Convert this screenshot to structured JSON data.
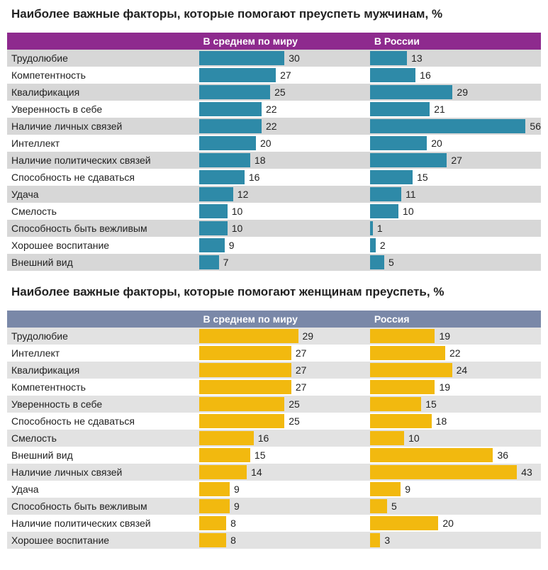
{
  "charts": [
    {
      "title": "Наиболее важные факторы, которые помогают преуспеть мужчинам, %",
      "header_bg": "#8e2a8e",
      "row_alt_bg": "#d7d7d7",
      "row_bg": "#ffffff",
      "bar_color": "#2e8aa8",
      "label_color": "#222222",
      "value_color": "#222222",
      "max_value": 60,
      "columns": [
        "В среднем по миру",
        "В России"
      ],
      "rows": [
        {
          "label": "Трудолюбие",
          "v1": 30,
          "v2": 13
        },
        {
          "label": "Компетентность",
          "v1": 27,
          "v2": 16
        },
        {
          "label": "Квалификация",
          "v1": 25,
          "v2": 29
        },
        {
          "label": "Уверенность в себе",
          "v1": 22,
          "v2": 21
        },
        {
          "label": "Наличие личных связей",
          "v1": 22,
          "v2": 56
        },
        {
          "label": "Интеллект",
          "v1": 20,
          "v2": 20
        },
        {
          "label": "Наличие политических связей",
          "v1": 18,
          "v2": 27
        },
        {
          "label": "Способность не сдаваться",
          "v1": 16,
          "v2": 15
        },
        {
          "label": "Удача",
          "v1": 12,
          "v2": 11
        },
        {
          "label": "Смелость",
          "v1": 10,
          "v2": 10
        },
        {
          "label": "Способность быть вежливым",
          "v1": 10,
          "v2": 1
        },
        {
          "label": "Хорошее воспитание",
          "v1": 9,
          "v2": 2
        },
        {
          "label": "Внешний вид",
          "v1": 7,
          "v2": 5
        }
      ]
    },
    {
      "title": "Наиболее важные факторы, которые помогают женщинам преуспеть, %",
      "header_bg": "#7a88a8",
      "row_alt_bg": "#e2e2e2",
      "row_bg": "#ffffff",
      "bar_color": "#f2b90f",
      "label_color": "#222222",
      "value_color": "#222222",
      "max_value": 50,
      "columns": [
        "В среднем по миру",
        "Россия"
      ],
      "rows": [
        {
          "label": "Трудолюбие",
          "v1": 29,
          "v2": 19
        },
        {
          "label": "Интеллект",
          "v1": 27,
          "v2": 22
        },
        {
          "label": "Квалификация",
          "v1": 27,
          "v2": 24
        },
        {
          "label": "Компетентность",
          "v1": 27,
          "v2": 19
        },
        {
          "label": "Уверенность в себе",
          "v1": 25,
          "v2": 15
        },
        {
          "label": "Способность не сдаваться",
          "v1": 25,
          "v2": 18
        },
        {
          "label": "Смелость",
          "v1": 16,
          "v2": 10
        },
        {
          "label": "Внешний вид",
          "v1": 15,
          "v2": 36
        },
        {
          "label": "Наличие личных связей",
          "v1": 14,
          "v2": 43
        },
        {
          "label": "Удача",
          "v1": 9,
          "v2": 9
        },
        {
          "label": "Способность быть вежливым",
          "v1": 9,
          "v2": 5
        },
        {
          "label": "Наличие политических связей",
          "v1": 8,
          "v2": 20
        },
        {
          "label": "Хорошее воспитание",
          "v1": 8,
          "v2": 3
        }
      ]
    }
  ]
}
